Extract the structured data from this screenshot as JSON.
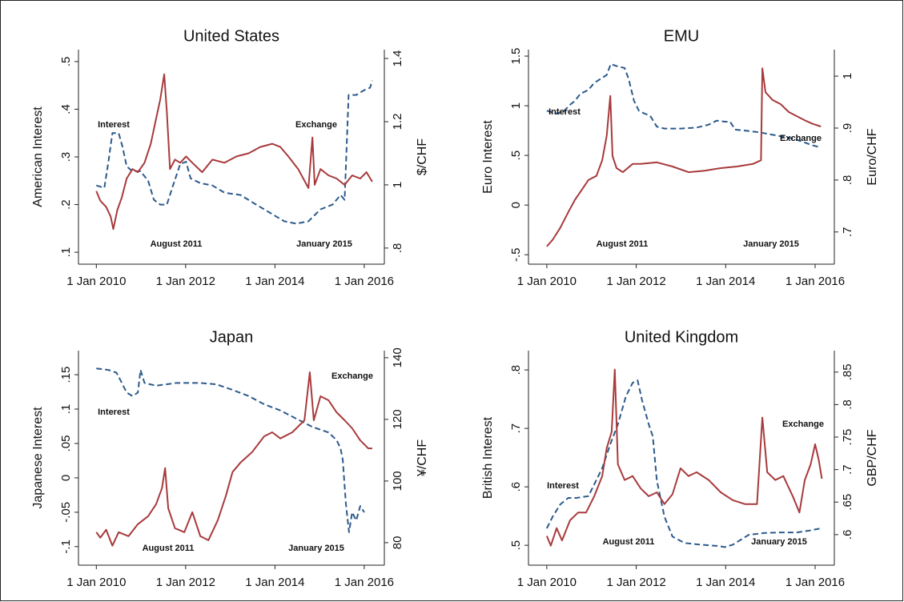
{
  "chart_data": [
    {
      "type": "line",
      "title": "United States",
      "ylabel": "American Interest",
      "y2label": "$/CHF",
      "xlim": [
        2009.6,
        2016.45
      ],
      "xticks": [
        {
          "value": 2010,
          "label": "1 Jan 2010"
        },
        {
          "value": 2012,
          "label": "1 Jan 2012"
        },
        {
          "value": 2014,
          "label": "1 Jan 2014"
        },
        {
          "value": 2016,
          "label": "1 Jan 2016"
        }
      ],
      "ylim": [
        0.075,
        0.525
      ],
      "yticks": [
        {
          "value": 0.1,
          "label": ".1"
        },
        {
          "value": 0.2,
          "label": ".2"
        },
        {
          "value": 0.3,
          "label": ".3"
        },
        {
          "value": 0.4,
          "label": ".4"
        },
        {
          "value": 0.5,
          "label": ".5"
        }
      ],
      "y2lim": [
        0.749,
        1.428
      ],
      "y2ticks": [
        {
          "value": 0.8,
          "label": ".8"
        },
        1,
        1.2,
        1.4
      ],
      "annotations": [
        "August 2011",
        "January 2015"
      ],
      "series": [
        {
          "name": "Interest",
          "color": "#2c5a8c",
          "line_style": "dashed",
          "x": [
            2010.0,
            2010.18,
            2010.27,
            2010.36,
            2010.5,
            2010.59,
            2010.68,
            2010.81,
            2010.99,
            2011.16,
            2011.29,
            2011.43,
            2011.58,
            2011.7,
            2011.88,
            2012.01,
            2012.11,
            2012.33,
            2012.6,
            2012.87,
            2013.23,
            2013.58,
            2013.94,
            2014.21,
            2014.48,
            2014.75,
            2015.02,
            2015.29,
            2015.47,
            2015.56,
            2015.65,
            2015.82,
            2016.0,
            2016.13,
            2016.18
          ],
          "values": [
            0.24,
            0.235,
            0.29,
            0.35,
            0.35,
            0.32,
            0.28,
            0.27,
            0.27,
            0.25,
            0.21,
            0.2,
            0.2,
            0.235,
            0.285,
            0.29,
            0.255,
            0.245,
            0.24,
            0.225,
            0.22,
            0.2,
            0.18,
            0.165,
            0.16,
            0.165,
            0.19,
            0.2,
            0.22,
            0.21,
            0.43,
            0.43,
            0.44,
            0.445,
            0.46
          ]
        },
        {
          "name": "Exchange",
          "color": "#a83a3c",
          "line_style": "solid",
          "axis": "y2",
          "x": [
            2010.0,
            2010.09,
            2010.22,
            2010.32,
            2010.38,
            2010.47,
            2010.57,
            2010.68,
            2010.81,
            2010.93,
            2011.08,
            2011.22,
            2011.34,
            2011.43,
            2011.52,
            2011.58,
            2011.65,
            2011.76,
            2011.88,
            2012.01,
            2012.15,
            2012.37,
            2012.6,
            2012.87,
            2013.14,
            2013.41,
            2013.67,
            2013.94,
            2014.12,
            2014.3,
            2014.52,
            2014.75,
            2014.84,
            2014.89,
            2015.02,
            2015.2,
            2015.38,
            2015.56,
            2015.73,
            2015.91,
            2016.05,
            2016.18
          ],
          "values": [
            0.98,
            0.95,
            0.93,
            0.9,
            0.86,
            0.92,
            0.96,
            1.02,
            1.05,
            1.04,
            1.07,
            1.13,
            1.21,
            1.27,
            1.35,
            1.23,
            1.05,
            1.08,
            1.07,
            1.09,
            1.07,
            1.04,
            1.08,
            1.07,
            1.09,
            1.1,
            1.12,
            1.13,
            1.12,
            1.09,
            1.05,
            0.99,
            1.15,
            1.0,
            1.05,
            1.03,
            1.02,
            1.0,
            1.03,
            1.02,
            1.04,
            1.01
          ]
        }
      ]
    },
    {
      "type": "line",
      "title": "EMU",
      "ylabel": "Euro Interest",
      "y2label": "Euro/CHF",
      "xlim": [
        2009.59,
        2016.43
      ],
      "xticks": [
        {
          "value": 2010,
          "label": "1 Jan 2010"
        },
        {
          "value": 2012,
          "label": "1 Jan 2012"
        },
        {
          "value": 2014,
          "label": "1 Jan 2014"
        },
        {
          "value": 2016,
          "label": "1 Jan 2016"
        }
      ],
      "ylim": [
        -0.595,
        1.565
      ],
      "yticks": [
        {
          "value": -0.5,
          "label": "-.5"
        },
        0,
        {
          "value": 0.5,
          "label": ".5"
        },
        1,
        1.5
      ],
      "y2lim": [
        0.638,
        1.051
      ],
      "y2ticks": [
        {
          "value": 0.7,
          "label": ".7"
        },
        {
          "value": 0.8,
          "label": ".8"
        },
        {
          "value": 0.9,
          "label": ".9"
        },
        1
      ],
      "annotations": [
        "August 2011",
        "January 2015"
      ],
      "series": [
        {
          "name": "Interest",
          "color": "#2c5a8c",
          "line_style": "dashed",
          "x": [
            2010.0,
            2010.22,
            2010.39,
            2010.52,
            2010.63,
            2010.75,
            2010.93,
            2011.06,
            2011.2,
            2011.34,
            2011.43,
            2011.56,
            2011.74,
            2011.83,
            2011.95,
            2012.06,
            2012.19,
            2012.31,
            2012.46,
            2012.63,
            2012.99,
            2013.35,
            2013.62,
            2013.8,
            2013.98,
            2014.1,
            2014.21,
            2014.43,
            2014.79,
            2015.14,
            2015.5,
            2015.77,
            2015.95,
            2016.13
          ],
          "values": [
            0.95,
            0.92,
            0.95,
            1.01,
            1.05,
            1.12,
            1.16,
            1.23,
            1.27,
            1.31,
            1.42,
            1.4,
            1.38,
            1.27,
            1.05,
            0.95,
            0.92,
            0.9,
            0.79,
            0.77,
            0.77,
            0.78,
            0.81,
            0.85,
            0.84,
            0.84,
            0.76,
            0.75,
            0.73,
            0.7,
            0.67,
            0.63,
            0.6,
            0.58
          ]
        },
        {
          "name": "Exchange",
          "color": "#a83a3c",
          "line_style": "solid",
          "axis": "y2",
          "x": [
            2010.0,
            2010.13,
            2010.3,
            2010.48,
            2010.63,
            2010.75,
            2010.93,
            2011.11,
            2011.24,
            2011.34,
            2011.42,
            2011.47,
            2011.56,
            2011.7,
            2011.92,
            2012.1,
            2012.46,
            2012.81,
            2013.17,
            2013.53,
            2013.89,
            2014.25,
            2014.61,
            2014.79,
            2014.82,
            2014.89,
            2015.05,
            2015.23,
            2015.41,
            2015.59,
            2015.77,
            2015.95,
            2016.13
          ],
          "values": [
            0.672,
            0.685,
            0.708,
            0.738,
            0.762,
            0.777,
            0.8,
            0.808,
            0.838,
            0.885,
            0.962,
            0.846,
            0.823,
            0.815,
            0.831,
            0.831,
            0.834,
            0.826,
            0.815,
            0.818,
            0.823,
            0.826,
            0.831,
            0.838,
            1.015,
            0.969,
            0.954,
            0.946,
            0.931,
            0.923,
            0.915,
            0.908,
            0.903
          ]
        }
      ]
    },
    {
      "type": "line",
      "title": "Japan",
      "ylabel": "Japanese Interest",
      "y2label": "¥/CHF",
      "xlim": [
        2009.6,
        2016.45
      ],
      "xticks": [
        {
          "value": 2010,
          "label": "1 Jan 2010"
        },
        {
          "value": 2012,
          "label": "1 Jan 2012"
        },
        {
          "value": 2014,
          "label": "1 Jan 2014"
        },
        {
          "value": 2016,
          "label": "1 Jan 2016"
        }
      ],
      "ylim": [
        -0.127,
        0.185
      ],
      "yticks": [
        {
          "value": -0.1,
          "label": "-.1"
        },
        {
          "value": -0.05,
          "label": "-.05"
        },
        0,
        {
          "value": 0.05,
          "label": ".05"
        },
        {
          "value": 0.1,
          "label": ".1"
        },
        {
          "value": 0.15,
          "label": ".15"
        }
      ],
      "y2lim": [
        72.7,
        142.3
      ],
      "y2ticks": [
        80,
        100,
        120,
        140
      ],
      "annotations": [
        "August 2011",
        "January 2015"
      ],
      "series": [
        {
          "name": "Interest",
          "color": "#2c5a8c",
          "line_style": "dashed",
          "x": [
            2010.0,
            2010.27,
            2010.45,
            2010.54,
            2010.68,
            2010.81,
            2010.93,
            2010.99,
            2011.08,
            2011.34,
            2011.79,
            2012.33,
            2012.69,
            2013.05,
            2013.41,
            2013.76,
            2014.12,
            2014.48,
            2014.84,
            2015.2,
            2015.38,
            2015.47,
            2015.52,
            2015.59,
            2015.66,
            2015.73,
            2015.82,
            2015.91,
            2016.0
          ],
          "values": [
            0.159,
            0.157,
            0.153,
            0.142,
            0.124,
            0.119,
            0.124,
            0.157,
            0.138,
            0.134,
            0.138,
            0.138,
            0.136,
            0.128,
            0.119,
            0.107,
            0.098,
            0.086,
            0.074,
            0.066,
            0.055,
            0.043,
            0.026,
            -0.038,
            -0.079,
            -0.05,
            -0.062,
            -0.041,
            -0.05
          ]
        },
        {
          "name": "Exchange",
          "color": "#a83a3c",
          "line_style": "solid",
          "axis": "y2",
          "x": [
            2010.0,
            2010.09,
            2010.22,
            2010.36,
            2010.5,
            2010.72,
            2010.93,
            2011.16,
            2011.34,
            2011.47,
            2011.54,
            2011.61,
            2011.76,
            2011.97,
            2012.15,
            2012.33,
            2012.51,
            2012.72,
            2012.9,
            2013.05,
            2013.23,
            2013.49,
            2013.76,
            2013.94,
            2014.12,
            2014.39,
            2014.66,
            2014.78,
            2014.87,
            2015.02,
            2015.2,
            2015.38,
            2015.56,
            2015.73,
            2015.91,
            2016.09,
            2016.18
          ],
          "values": [
            83.4,
            81.6,
            84.2,
            79,
            83.4,
            82.1,
            86,
            88.6,
            92.5,
            97.7,
            104.2,
            91.2,
            84.7,
            83.4,
            89.9,
            82.1,
            80.8,
            87.3,
            95.1,
            102.9,
            106,
            109.4,
            114.5,
            115.8,
            113.8,
            115.8,
            119.7,
            135.3,
            119.7,
            127.5,
            126.2,
            122.3,
            119.7,
            117.1,
            113.2,
            110.6,
            110.6
          ]
        }
      ]
    },
    {
      "type": "line",
      "title": "United Kingdom",
      "ylabel": "British Interest",
      "y2label": "GBP/CHF",
      "xlim": [
        2009.59,
        2016.43
      ],
      "xticks": [
        {
          "value": 2010,
          "label": "1 Jan 2010"
        },
        {
          "value": 2012,
          "label": "1 Jan 2012"
        },
        {
          "value": 2014,
          "label": "1 Jan 2014"
        },
        {
          "value": 2016,
          "label": "1 Jan 2016"
        }
      ],
      "ylim": [
        0.466,
        0.833
      ],
      "yticks": [
        {
          "value": 0.5,
          "label": ".5"
        },
        {
          "value": 0.6,
          "label": ".6"
        },
        {
          "value": 0.7,
          "label": ".7"
        },
        {
          "value": 0.8,
          "label": ".8"
        }
      ],
      "y2lim": [
        0.553,
        0.883
      ],
      "y2ticks": [
        {
          "value": 0.6,
          "label": ".6"
        },
        {
          "value": 0.65,
          "label": ".65"
        },
        {
          "value": 0.7,
          "label": ".7"
        },
        {
          "value": 0.75,
          "label": ".75"
        },
        {
          "value": 0.8,
          "label": ".8"
        },
        {
          "value": 0.85,
          "label": ".85"
        }
      ],
      "annotations": [
        "August 2011",
        "January 2015"
      ],
      "series": [
        {
          "name": "Interest",
          "color": "#2c5a8c",
          "line_style": "dashed",
          "x": [
            2010.0,
            2010.13,
            2010.3,
            2010.48,
            2010.66,
            2010.93,
            2011.06,
            2011.24,
            2011.42,
            2011.59,
            2011.77,
            2011.92,
            2012.03,
            2012.13,
            2012.28,
            2012.37,
            2012.46,
            2012.63,
            2012.81,
            2013.08,
            2013.44,
            2013.8,
            2013.98,
            2014.16,
            2014.52,
            2014.87,
            2015.23,
            2015.59,
            2015.86,
            2016.13
          ],
          "values": [
            0.529,
            0.549,
            0.57,
            0.581,
            0.581,
            0.584,
            0.604,
            0.632,
            0.673,
            0.707,
            0.755,
            0.778,
            0.782,
            0.748,
            0.707,
            0.686,
            0.611,
            0.549,
            0.515,
            0.504,
            0.501,
            0.499,
            0.497,
            0.501,
            0.518,
            0.521,
            0.522,
            0.522,
            0.525,
            0.529
          ]
        },
        {
          "name": "Exchange",
          "color": "#a83a3c",
          "line_style": "solid",
          "axis": "y2",
          "x": [
            2010.0,
            2010.09,
            2010.22,
            2010.34,
            2010.52,
            2010.7,
            2010.88,
            2011.06,
            2011.24,
            2011.34,
            2011.45,
            2011.52,
            2011.59,
            2011.74,
            2011.92,
            2012.1,
            2012.28,
            2012.46,
            2012.63,
            2012.81,
            2012.99,
            2013.17,
            2013.35,
            2013.62,
            2013.89,
            2014.16,
            2014.43,
            2014.7,
            2014.82,
            2014.93,
            2015.11,
            2015.29,
            2015.5,
            2015.65,
            2015.77,
            2015.9,
            2016.0,
            2016.08,
            2016.15
          ],
          "values": [
            0.598,
            0.583,
            0.61,
            0.591,
            0.622,
            0.634,
            0.634,
            0.659,
            0.69,
            0.733,
            0.758,
            0.854,
            0.708,
            0.684,
            0.69,
            0.671,
            0.659,
            0.665,
            0.647,
            0.662,
            0.702,
            0.69,
            0.696,
            0.684,
            0.665,
            0.653,
            0.647,
            0.647,
            0.78,
            0.696,
            0.684,
            0.69,
            0.659,
            0.634,
            0.684,
            0.708,
            0.739,
            0.715,
            0.686
          ]
        }
      ]
    }
  ]
}
